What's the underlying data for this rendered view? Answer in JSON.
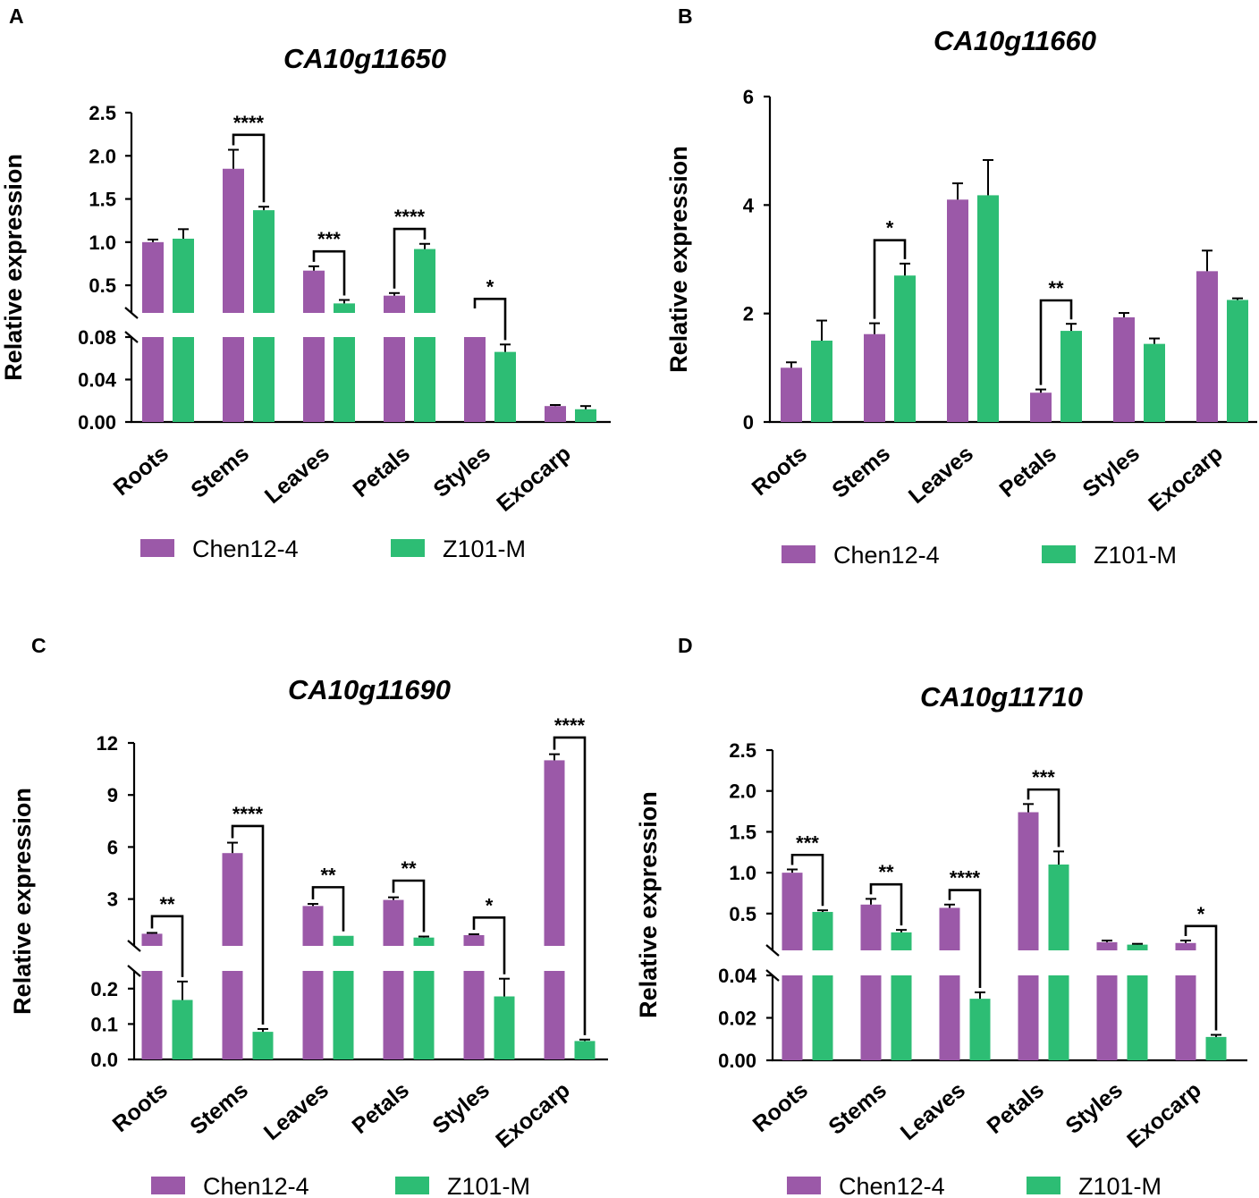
{
  "colors": {
    "chen": "#9b59a8",
    "z101": "#2dbd74",
    "axis": "#000000"
  },
  "chart_data": [
    {
      "panel_label": "A",
      "type": "bar",
      "broken_axis": true,
      "title": "CA10g11650",
      "ylabel": "Relative expression",
      "categories": [
        "Roots",
        "Stems",
        "Leaves",
        "Petals",
        "Styles",
        "Exocarp"
      ],
      "series": [
        {
          "name": "Chen12-4",
          "values": [
            1.0,
            1.85,
            0.67,
            0.38,
            0.17,
            0.015
          ],
          "errors": [
            0.03,
            0.22,
            0.05,
            0.03,
            0.0,
            0.001
          ]
        },
        {
          "name": "Z101-M",
          "values": [
            1.04,
            1.37,
            0.29,
            0.92,
            0.066,
            0.012
          ],
          "errors": [
            0.11,
            0.04,
            0.04,
            0.06,
            0.007,
            0.003
          ]
        }
      ],
      "upper": {
        "range": [
          0.18,
          2.5
        ],
        "ticks": [
          0.5,
          1.0,
          1.5,
          2.0,
          2.5
        ],
        "tick_labels": [
          "0.5",
          "1.0",
          "1.5",
          "2.0",
          "2.5"
        ]
      },
      "lower": {
        "range": [
          0,
          0.08
        ],
        "ticks": [
          0,
          0.04,
          0.08
        ],
        "tick_labels": [
          "0.00",
          "0.04",
          "0.08"
        ]
      },
      "significance": [
        {
          "category": 1,
          "label": "****"
        },
        {
          "category": 2,
          "label": "***"
        },
        {
          "category": 3,
          "label": "****"
        },
        {
          "category": 4,
          "label": "*"
        }
      ]
    },
    {
      "panel_label": "B",
      "type": "bar",
      "broken_axis": false,
      "title": "CA10g11660",
      "ylabel": "Relative expression",
      "categories": [
        "Roots",
        "Stems",
        "Leaves",
        "Petals",
        "Styles",
        "Exocarp"
      ],
      "series": [
        {
          "name": "Chen12-4",
          "values": [
            1.0,
            1.62,
            4.1,
            0.54,
            1.93,
            2.78
          ],
          "errors": [
            0.1,
            0.2,
            0.3,
            0.06,
            0.08,
            0.38
          ]
        },
        {
          "name": "Z101-M",
          "values": [
            1.5,
            2.7,
            4.18,
            1.68,
            1.44,
            2.25
          ],
          "errors": [
            0.37,
            0.22,
            0.65,
            0.13,
            0.1,
            0.03
          ]
        }
      ],
      "upper": {
        "range": [
          0,
          6
        ],
        "ticks": [
          0,
          2,
          4,
          6
        ],
        "tick_labels": [
          "0",
          "2",
          "4",
          "6"
        ]
      },
      "significance": [
        {
          "category": 1,
          "label": "*"
        },
        {
          "category": 3,
          "label": "**"
        }
      ]
    },
    {
      "panel_label": "C",
      "type": "bar",
      "broken_axis": true,
      "title": "CA10g11690",
      "ylabel": "Relative expression",
      "categories": [
        "Roots",
        "Stems",
        "Leaves",
        "Petals",
        "Styles",
        "Exocarp"
      ],
      "series": [
        {
          "name": "Chen12-4",
          "values": [
            1.0,
            5.65,
            2.6,
            2.95,
            0.92,
            11.0
          ],
          "errors": [
            0.05,
            0.6,
            0.12,
            0.15,
            0.05,
            0.35
          ]
        },
        {
          "name": "Z101-M",
          "values": [
            0.168,
            0.078,
            0.88,
            0.78,
            0.178,
            0.052
          ],
          "errors": [
            0.052,
            0.008,
            0.0,
            0.06,
            0.05,
            0.004
          ]
        }
      ],
      "upper": {
        "range": [
          0.3,
          12
        ],
        "ticks": [
          3,
          6,
          9,
          12
        ],
        "tick_labels": [
          "3",
          "6",
          "9",
          "12"
        ]
      },
      "lower": {
        "range": [
          0,
          0.25
        ],
        "ticks": [
          0,
          0.1,
          0.2
        ],
        "tick_labels": [
          "0.0",
          "0.1",
          "0.2"
        ]
      },
      "significance": [
        {
          "category": 0,
          "label": "**"
        },
        {
          "category": 1,
          "label": "****"
        },
        {
          "category": 2,
          "label": "**"
        },
        {
          "category": 3,
          "label": "**"
        },
        {
          "category": 4,
          "label": "*"
        },
        {
          "category": 5,
          "label": "****"
        }
      ]
    },
    {
      "panel_label": "D",
      "type": "bar",
      "broken_axis": true,
      "title": "CA10g11710",
      "ylabel": "Relative expression",
      "categories": [
        "Roots",
        "Stems",
        "Leaves",
        "Petals",
        "Styles",
        "Exocarp"
      ],
      "series": [
        {
          "name": "Chen12-4",
          "values": [
            1.0,
            0.61,
            0.57,
            1.74,
            0.15,
            0.14
          ],
          "errors": [
            0.04,
            0.07,
            0.04,
            0.1,
            0.02,
            0.03
          ]
        },
        {
          "name": "Z101-M",
          "values": [
            0.52,
            0.27,
            0.029,
            1.1,
            0.12,
            0.011
          ],
          "errors": [
            0.02,
            0.03,
            0.003,
            0.16,
            0.01,
            0.001
          ]
        }
      ],
      "upper": {
        "range": [
          0.05,
          2.5
        ],
        "ticks": [
          0.5,
          1.0,
          1.5,
          2.0,
          2.5
        ],
        "tick_labels": [
          "0.5",
          "1.0",
          "1.5",
          "2.0",
          "2.5"
        ]
      },
      "lower": {
        "range": [
          0,
          0.04
        ],
        "ticks": [
          0,
          0.02,
          0.04
        ],
        "tick_labels": [
          "0.00",
          "0.02",
          "0.04"
        ]
      },
      "significance": [
        {
          "category": 0,
          "label": "***"
        },
        {
          "category": 1,
          "label": "**"
        },
        {
          "category": 2,
          "label": "****"
        },
        {
          "category": 3,
          "label": "***"
        },
        {
          "category": 5,
          "label": "*"
        }
      ]
    }
  ]
}
